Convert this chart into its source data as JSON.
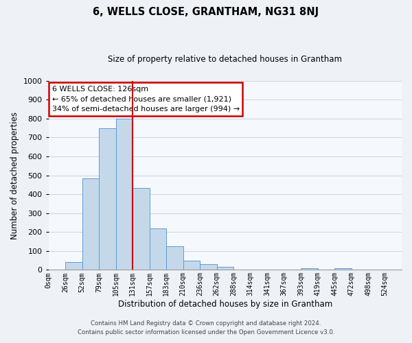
{
  "title": "6, WELLS CLOSE, GRANTHAM, NG31 8NJ",
  "subtitle": "Size of property relative to detached houses in Grantham",
  "xlabel": "Distribution of detached houses by size in Grantham",
  "ylabel": "Number of detached properties",
  "bar_labels": [
    "0sqm",
    "26sqm",
    "52sqm",
    "79sqm",
    "105sqm",
    "131sqm",
    "157sqm",
    "183sqm",
    "210sqm",
    "236sqm",
    "262sqm",
    "288sqm",
    "314sqm",
    "341sqm",
    "367sqm",
    "393sqm",
    "419sqm",
    "445sqm",
    "472sqm",
    "498sqm",
    "524sqm"
  ],
  "bar_heights": [
    0,
    42,
    485,
    750,
    800,
    435,
    220,
    125,
    50,
    30,
    15,
    0,
    0,
    0,
    0,
    8,
    0,
    8,
    0,
    0,
    0
  ],
  "bar_color": "#c5d8ea",
  "bar_edgecolor": "#5b9bd5",
  "ylim": [
    0,
    1000
  ],
  "yticks": [
    0,
    100,
    200,
    300,
    400,
    500,
    600,
    700,
    800,
    900,
    1000
  ],
  "vline_color": "#cc0000",
  "vline_x": 5,
  "annotation_title": "6 WELLS CLOSE: 126sqm",
  "annotation_line1": "← 65% of detached houses are smaller (1,921)",
  "annotation_line2": "34% of semi-detached houses are larger (994) →",
  "annotation_box_edgecolor": "#cc0000",
  "footer_line1": "Contains HM Land Registry data © Crown copyright and database right 2024.",
  "footer_line2": "Contains public sector information licensed under the Open Government Licence v3.0.",
  "bg_color": "#eef2f7",
  "plot_bg_color": "#f5f8fc",
  "grid_color": "#c8d0d8"
}
